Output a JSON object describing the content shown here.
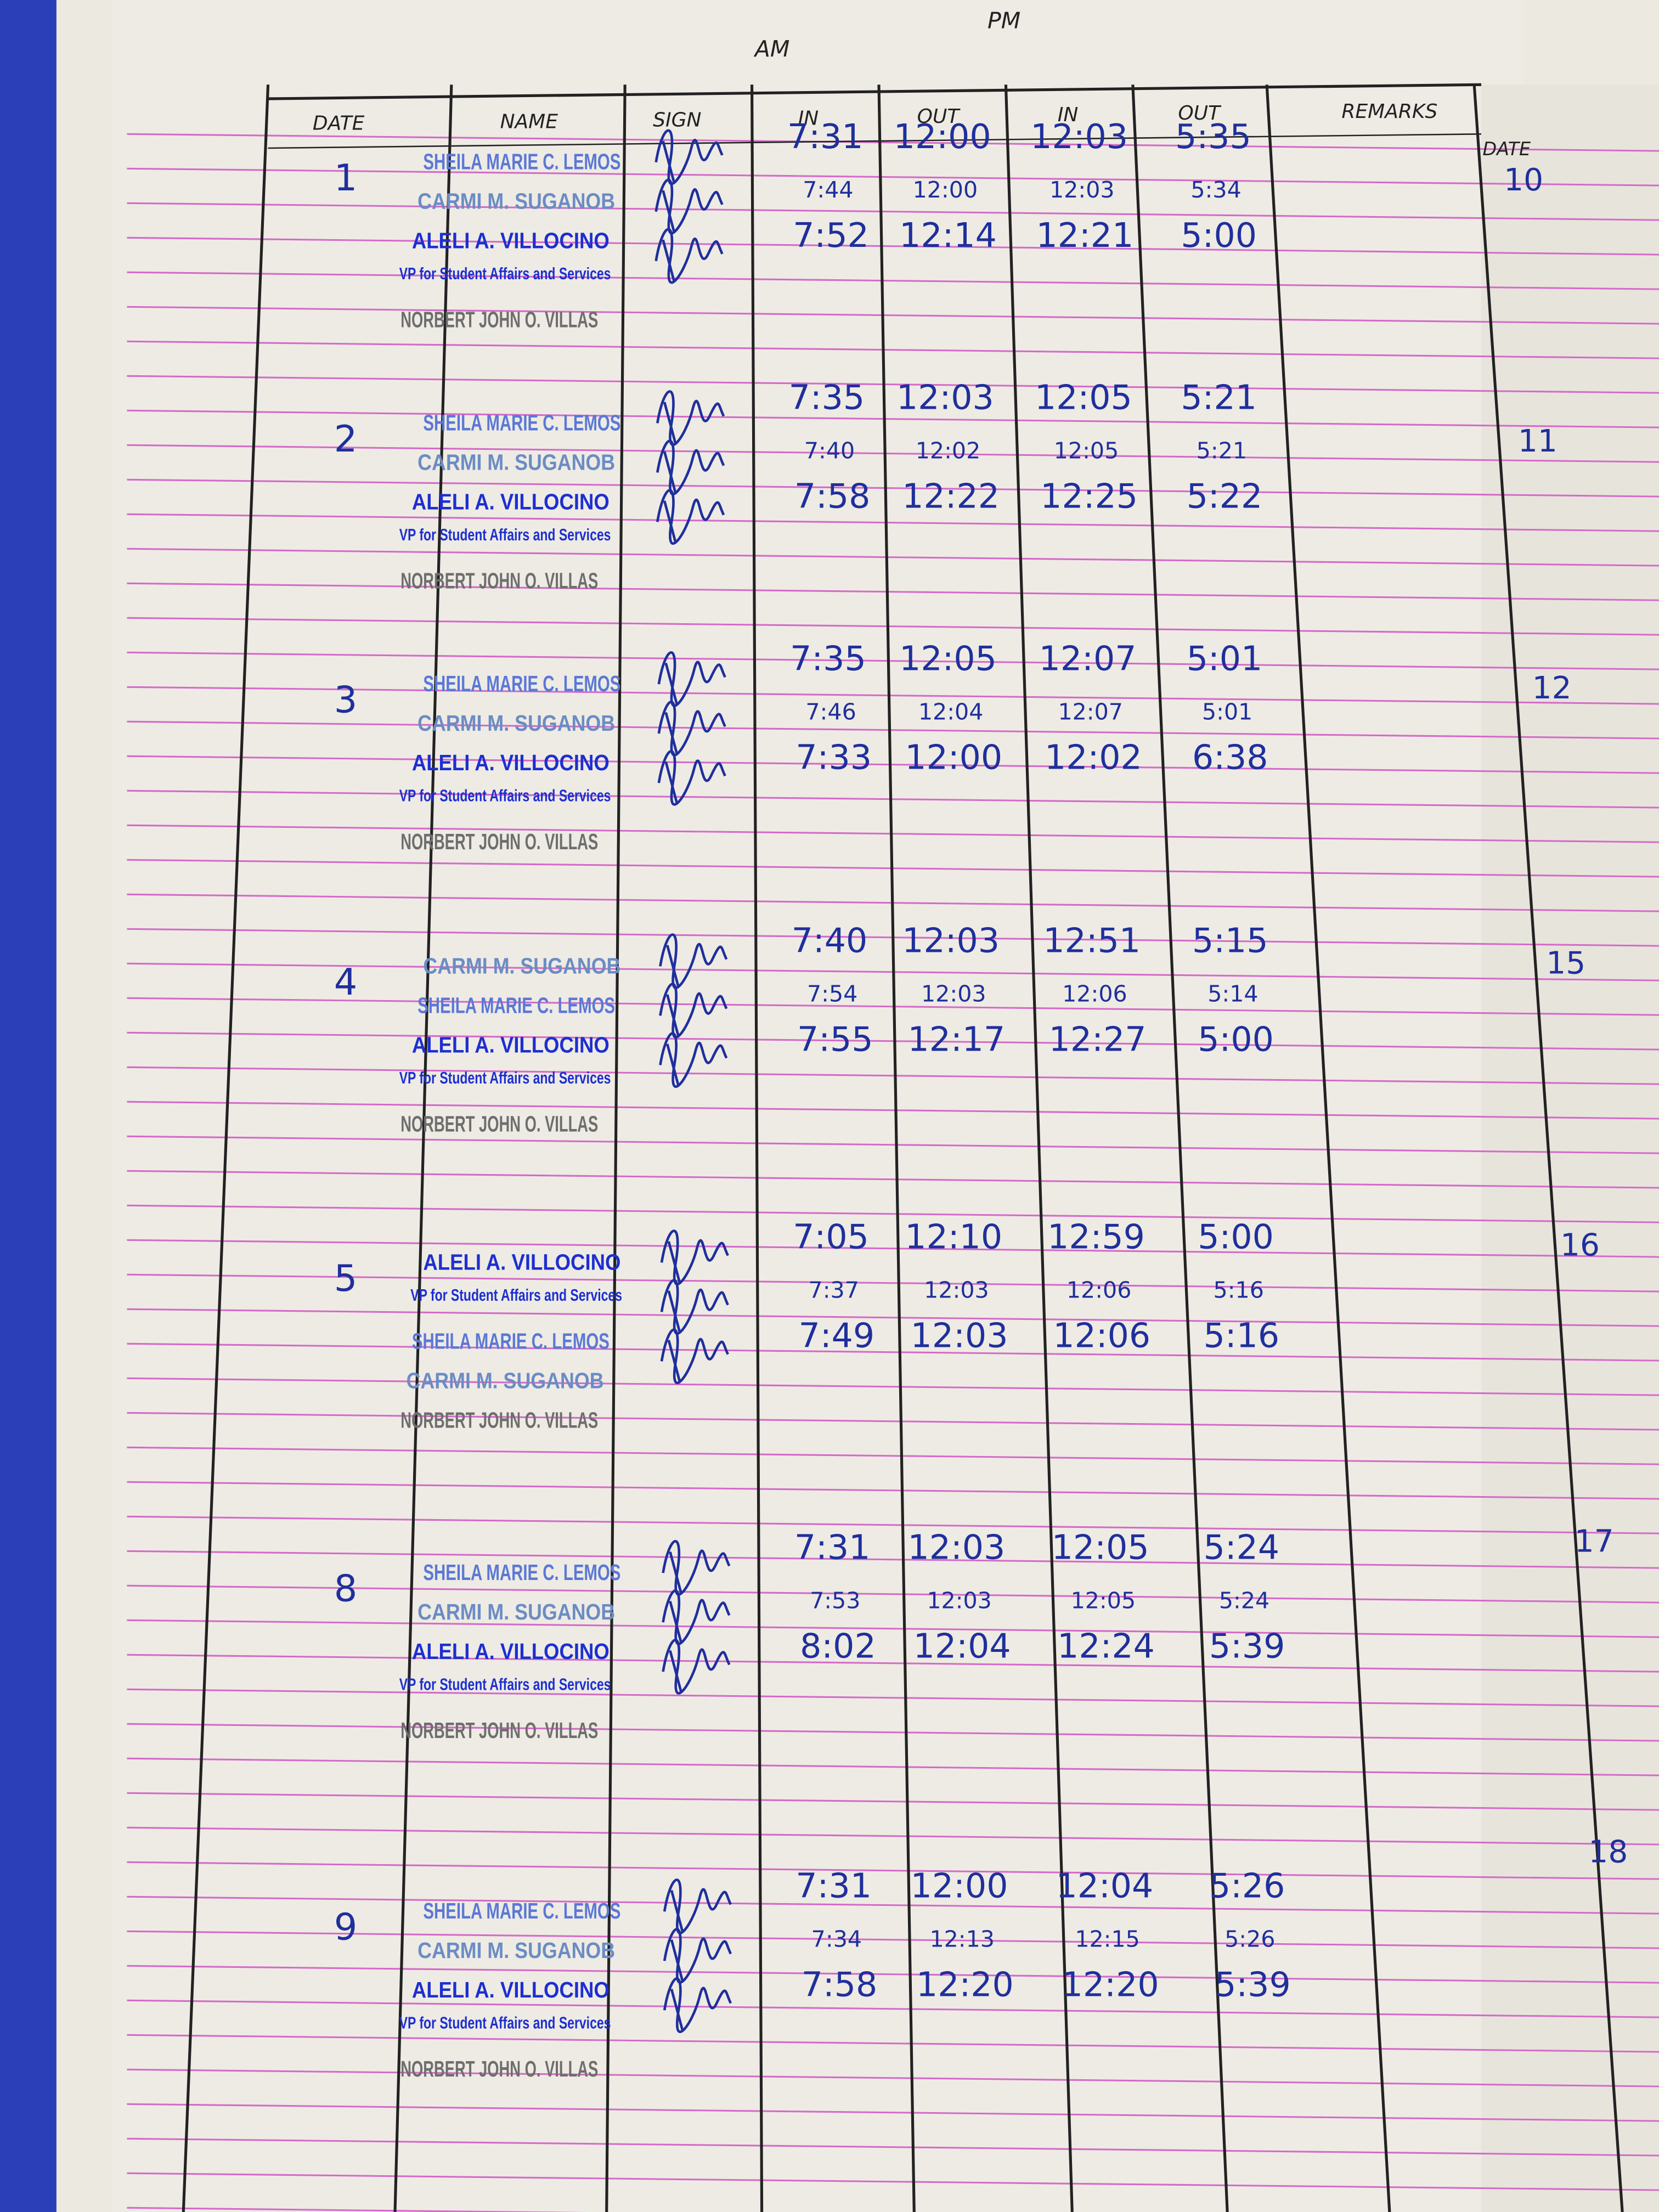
{
  "header": {
    "am": "AM",
    "pm": "PM",
    "columns": [
      "DATE",
      "NAME",
      "SIGN",
      "IN",
      "OUT",
      "IN",
      "OUT",
      "REMARKS"
    ]
  },
  "stamps": [
    {
      "text": "SHEILA MARIE C. LEMOS",
      "color": "#5b78d6"
    },
    {
      "text": "CARMI M. SUGANOB",
      "color": "#6b8cc4"
    },
    {
      "text": "ALELI A. VILLOCINO",
      "color": "#1d2fd0"
    },
    {
      "text": "VP for Student Affairs and Services",
      "color": "#1d2fd0"
    },
    {
      "text": "NORBERT JOHN O. VILLAS",
      "color": "#6e6e6e"
    }
  ],
  "entries": [
    {
      "date": "1",
      "names": [
        "SHEILA MARIE C. LEMOS",
        "CARMI M. SUGANOB",
        "ALELI A. VILLOCINO",
        "VP for Student Affairs and Services",
        "NORBERT JOHN O. VILLAS"
      ],
      "times": [
        [
          "7:31",
          "12:00",
          "12:03",
          "5:35"
        ],
        [
          "7:44",
          "12:00",
          "12:03",
          "5:34"
        ],
        [
          "7:52",
          "12:14",
          "12:21",
          "5:00"
        ]
      ]
    },
    {
      "date": "2",
      "names": [
        "SHEILA MARIE C. LEMOS",
        "CARMI M. SUGANOB",
        "ALELI A. VILLOCINO",
        "VP for Student Affairs and Services",
        "NORBERT JOHN O. VILLAS"
      ],
      "times": [
        [
          "7:35",
          "12:03",
          "12:05",
          "5:21"
        ],
        [
          "7:40",
          "12:02",
          "12:05",
          "5:21"
        ],
        [
          "7:58",
          "12:22",
          "12:25",
          "5:22"
        ]
      ]
    },
    {
      "date": "3",
      "names": [
        "SHEILA MARIE C. LEMOS",
        "CARMI M. SUGANOB",
        "ALELI A. VILLOCINO",
        "VP for Student Affairs and Services",
        "NORBERT JOHN O. VILLAS"
      ],
      "times": [
        [
          "7:35",
          "12:05",
          "12:07",
          "5:01"
        ],
        [
          "7:46",
          "12:04",
          "12:07",
          "5:01"
        ],
        [
          "7:33",
          "12:00",
          "12:02",
          "6:38"
        ]
      ]
    },
    {
      "date": "4",
      "names": [
        "CARMI M. SUGANOB",
        "SHEILA MARIE C. LEMOS",
        "ALELI A. VILLOCINO",
        "VP for Student Affairs and Services",
        "NORBERT JOHN O. VILLAS"
      ],
      "times": [
        [
          "7:40",
          "12:03",
          "12:51",
          "5:15"
        ],
        [
          "7:54",
          "12:03",
          "12:06",
          "5:14"
        ],
        [
          "7:55",
          "12:17",
          "12:27",
          "5:00"
        ]
      ]
    },
    {
      "date": "5",
      "names": [
        "ALELI A. VILLOCINO",
        "VP for Student Affairs and Services",
        "SHEILA MARIE C. LEMOS",
        "CARMI M. SUGANOB",
        "NORBERT JOHN O. VILLAS"
      ],
      "times": [
        [
          "7:05",
          "12:10",
          "12:59",
          "5:00"
        ],
        [
          "7:37",
          "12:03",
          "12:06",
          "5:16"
        ],
        [
          "7:49",
          "12:03",
          "12:06",
          "5:16"
        ]
      ]
    },
    {
      "date": "8",
      "names": [
        "SHEILA MARIE C. LEMOS",
        "CARMI M. SUGANOB",
        "ALELI A. VILLOCINO",
        "VP for Student Affairs and Services",
        "NORBERT JOHN O. VILLAS"
      ],
      "times": [
        [
          "7:31",
          "12:03",
          "12:05",
          "5:24"
        ],
        [
          "7:53",
          "12:03",
          "12:05",
          "5:24"
        ],
        [
          "8:02",
          "12:04",
          "12:24",
          "5:39"
        ]
      ]
    },
    {
      "date": "9",
      "names": [
        "SHEILA MARIE C. LEMOS",
        "CARMI M. SUGANOB",
        "ALELI A. VILLOCINO",
        "VP for Student Affairs and Services",
        "NORBERT JOHN O. VILLAS"
      ],
      "times": [
        [
          "7:31",
          "12:00",
          "12:04",
          "5:26"
        ],
        [
          "7:34",
          "12:13",
          "12:15",
          "5:26"
        ],
        [
          "7:58",
          "12:20",
          "12:20",
          "5:39"
        ]
      ]
    }
  ],
  "next_page": {
    "column": "DATE",
    "dates": [
      "10",
      "11",
      "12",
      "15",
      "16",
      "17",
      "18"
    ]
  }
}
